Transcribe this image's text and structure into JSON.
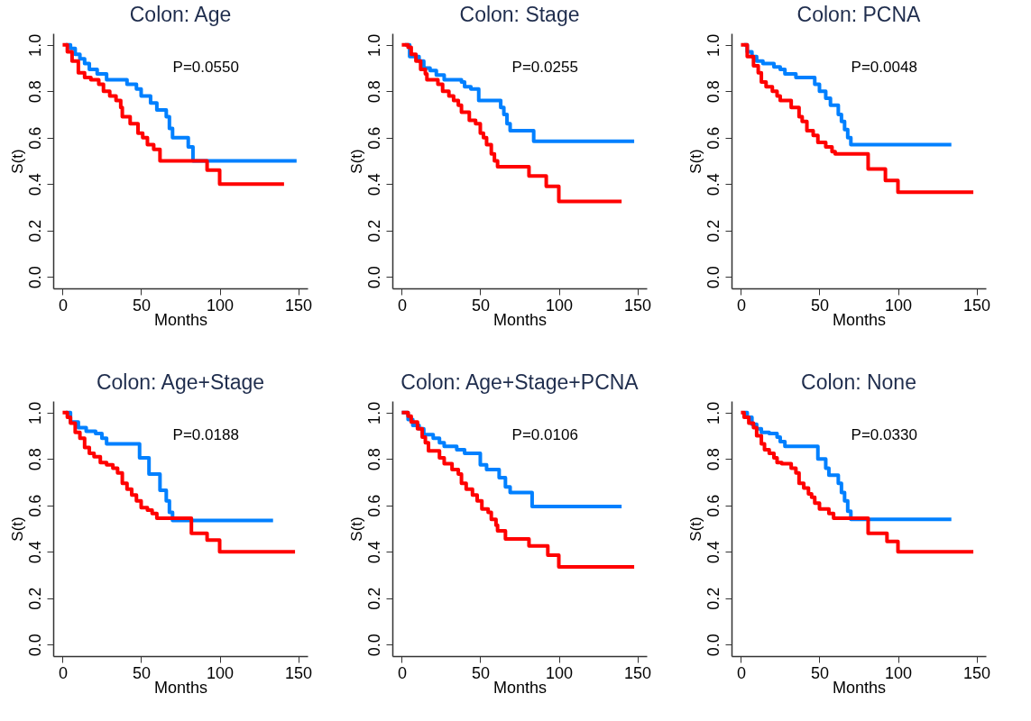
{
  "chart_data": [
    {
      "type": "step",
      "title": "Colon: Age",
      "xlabel": "Months",
      "ylabel": "S(t)",
      "xlim": [
        -6,
        156
      ],
      "ylim": [
        -0.05,
        1.05
      ],
      "xticks": [
        0,
        50,
        100,
        150
      ],
      "yticks": [
        {
          "value": 0,
          "label": "0.0"
        },
        {
          "value": 0.2,
          "label": "0.2"
        },
        {
          "value": 0.4,
          "label": "0.4"
        },
        {
          "value": 0.6,
          "label": "0.6"
        },
        {
          "value": 0.8,
          "label": "0.8"
        },
        {
          "value": 1,
          "label": "1.0"
        }
      ],
      "annotations": [
        "P=0.0550"
      ],
      "series": [
        {
          "color": "#0080ff",
          "x": [
            2,
            5,
            8,
            11,
            14,
            17,
            22,
            28,
            41,
            47,
            50,
            56,
            60,
            66,
            68,
            70,
            80,
            83,
            149
          ],
          "values": [
            1.0,
            0.985,
            0.96,
            0.94,
            0.92,
            0.895,
            0.875,
            0.85,
            0.83,
            0.81,
            0.78,
            0.75,
            0.72,
            0.69,
            0.64,
            0.6,
            0.56,
            0.5,
            0.5
          ]
        },
        {
          "color": "#ff0000",
          "x": [
            0,
            3,
            6,
            10,
            14,
            18,
            23,
            26,
            30,
            34,
            37,
            38,
            43,
            48,
            51,
            54,
            58,
            62,
            92,
            100,
            141
          ],
          "values": [
            1.0,
            0.97,
            0.93,
            0.88,
            0.86,
            0.85,
            0.83,
            0.8,
            0.78,
            0.76,
            0.73,
            0.69,
            0.66,
            0.62,
            0.6,
            0.57,
            0.55,
            0.5,
            0.46,
            0.4,
            0.4
          ]
        }
      ]
    },
    {
      "type": "step",
      "title": "Colon: Stage",
      "xlabel": "Months",
      "ylabel": "S(t)",
      "xlim": [
        -6,
        156
      ],
      "ylim": [
        -0.05,
        1.05
      ],
      "xticks": [
        0,
        50,
        100,
        150
      ],
      "yticks": [
        {
          "value": 0,
          "label": "0.0"
        },
        {
          "value": 0.2,
          "label": "0.2"
        },
        {
          "value": 0.4,
          "label": "0.4"
        },
        {
          "value": 0.6,
          "label": "0.6"
        },
        {
          "value": 0.8,
          "label": "0.8"
        },
        {
          "value": 1,
          "label": "1.0"
        }
      ],
      "annotations": [
        "P=0.0255"
      ],
      "series": [
        {
          "color": "#0080ff",
          "x": [
            2,
            5,
            11,
            14,
            18,
            22,
            27,
            38,
            40,
            44,
            49,
            63,
            65,
            67,
            69,
            84,
            148
          ],
          "values": [
            1.0,
            0.95,
            0.93,
            0.9,
            0.89,
            0.87,
            0.85,
            0.84,
            0.82,
            0.81,
            0.76,
            0.73,
            0.7,
            0.66,
            0.63,
            0.585,
            0.585
          ]
        },
        {
          "color": "#ff0000",
          "x": [
            0,
            4,
            6,
            9,
            12,
            15,
            16,
            23,
            26,
            30,
            33,
            36,
            38,
            43,
            47,
            50,
            52,
            54,
            57,
            59,
            61,
            81,
            92,
            100,
            140
          ],
          "values": [
            1.0,
            0.99,
            0.96,
            0.93,
            0.895,
            0.875,
            0.85,
            0.83,
            0.8,
            0.78,
            0.76,
            0.74,
            0.71,
            0.675,
            0.66,
            0.62,
            0.6,
            0.57,
            0.53,
            0.5,
            0.475,
            0.435,
            0.39,
            0.325,
            0.325
          ]
        }
      ]
    },
    {
      "type": "step",
      "title": "Colon: PCNA",
      "xlabel": "Months",
      "ylabel": "S(t)",
      "xlim": [
        -6,
        156
      ],
      "ylim": [
        -0.05,
        1.05
      ],
      "xticks": [
        0,
        50,
        100,
        150
      ],
      "yticks": [
        {
          "value": 0,
          "label": "0.0"
        },
        {
          "value": 0.2,
          "label": "0.2"
        },
        {
          "value": 0.4,
          "label": "0.4"
        },
        {
          "value": 0.6,
          "label": "0.6"
        },
        {
          "value": 0.8,
          "label": "0.8"
        },
        {
          "value": 1,
          "label": "1.0"
        }
      ],
      "annotations": [
        "P=0.0048"
      ],
      "series": [
        {
          "color": "#0080ff",
          "x": [
            2,
            4,
            7,
            10,
            14,
            21,
            25,
            28,
            35,
            47,
            50,
            54,
            57,
            62,
            64,
            66,
            68,
            70,
            134
          ],
          "values": [
            1.0,
            0.97,
            0.95,
            0.93,
            0.92,
            0.905,
            0.895,
            0.875,
            0.86,
            0.83,
            0.8,
            0.77,
            0.74,
            0.7,
            0.67,
            0.635,
            0.6,
            0.57,
            0.57
          ]
        },
        {
          "color": "#ff0000",
          "x": [
            0,
            4,
            8,
            11,
            13,
            16,
            20,
            23,
            25,
            32,
            37,
            39,
            42,
            46,
            49,
            54,
            58,
            60,
            81,
            92,
            100,
            148
          ],
          "values": [
            1.0,
            0.95,
            0.91,
            0.88,
            0.84,
            0.82,
            0.8,
            0.78,
            0.76,
            0.73,
            0.69,
            0.67,
            0.63,
            0.61,
            0.58,
            0.56,
            0.54,
            0.53,
            0.465,
            0.415,
            0.365,
            0.365
          ]
        }
      ]
    },
    {
      "type": "step",
      "title": "Colon: Age+Stage",
      "xlabel": "Months",
      "ylabel": "S(t)",
      "xlim": [
        -6,
        156
      ],
      "ylim": [
        -0.05,
        1.05
      ],
      "xticks": [
        0,
        50,
        100,
        150
      ],
      "yticks": [
        {
          "value": 0,
          "label": "0.0"
        },
        {
          "value": 0.2,
          "label": "0.2"
        },
        {
          "value": 0.4,
          "label": "0.4"
        },
        {
          "value": 0.6,
          "label": "0.6"
        },
        {
          "value": 0.8,
          "label": "0.8"
        },
        {
          "value": 1,
          "label": "1.0"
        }
      ],
      "annotations": [
        "P=0.0188"
      ],
      "series": [
        {
          "color": "#0080ff",
          "x": [
            2,
            5,
            10,
            15,
            21,
            25,
            28,
            49,
            55,
            62,
            66,
            68,
            70,
            134
          ],
          "values": [
            1.0,
            0.96,
            0.935,
            0.92,
            0.91,
            0.89,
            0.865,
            0.805,
            0.735,
            0.665,
            0.62,
            0.57,
            0.535,
            0.535
          ]
        },
        {
          "color": "#ff0000",
          "x": [
            0,
            3,
            5,
            8,
            11,
            14,
            17,
            20,
            24,
            28,
            32,
            35,
            38,
            41,
            44,
            47,
            50,
            54,
            57,
            60,
            82,
            92,
            100,
            148
          ],
          "values": [
            1.0,
            0.98,
            0.955,
            0.915,
            0.89,
            0.85,
            0.825,
            0.81,
            0.785,
            0.775,
            0.76,
            0.74,
            0.695,
            0.67,
            0.645,
            0.62,
            0.59,
            0.58,
            0.565,
            0.545,
            0.48,
            0.45,
            0.4,
            0.4
          ]
        }
      ]
    },
    {
      "type": "step",
      "title": "Colon: Age+Stage+PCNA",
      "xlabel": "Months",
      "ylabel": "S(t)",
      "xlim": [
        -6,
        156
      ],
      "ylim": [
        -0.05,
        1.05
      ],
      "xticks": [
        0,
        50,
        100,
        150
      ],
      "yticks": [
        {
          "value": 0,
          "label": "0.0"
        },
        {
          "value": 0.2,
          "label": "0.2"
        },
        {
          "value": 0.4,
          "label": "0.4"
        },
        {
          "value": 0.6,
          "label": "0.6"
        },
        {
          "value": 0.8,
          "label": "0.8"
        },
        {
          "value": 1,
          "label": "1.0"
        }
      ],
      "annotations": [
        "P=0.0106"
      ],
      "series": [
        {
          "color": "#0080ff",
          "x": [
            0,
            4,
            7,
            11,
            14,
            20,
            24,
            27,
            35,
            40,
            50,
            54,
            62,
            66,
            69,
            83,
            140
          ],
          "values": [
            1.0,
            0.97,
            0.945,
            0.93,
            0.905,
            0.89,
            0.87,
            0.855,
            0.84,
            0.825,
            0.775,
            0.755,
            0.72,
            0.68,
            0.655,
            0.595,
            0.595
          ]
        },
        {
          "color": "#ff0000",
          "x": [
            0,
            4,
            6,
            10,
            13,
            15,
            17,
            24,
            27,
            32,
            36,
            38,
            41,
            45,
            48,
            51,
            55,
            57,
            60,
            61,
            66,
            81,
            93,
            100,
            148
          ],
          "values": [
            1.0,
            0.985,
            0.96,
            0.93,
            0.895,
            0.87,
            0.835,
            0.805,
            0.78,
            0.755,
            0.735,
            0.695,
            0.67,
            0.645,
            0.62,
            0.585,
            0.57,
            0.54,
            0.515,
            0.49,
            0.455,
            0.425,
            0.385,
            0.335,
            0.335
          ]
        }
      ]
    },
    {
      "type": "step",
      "title": "Colon: None",
      "xlabel": "Months",
      "ylabel": "S(t)",
      "xlim": [
        -6,
        156
      ],
      "ylim": [
        -0.05,
        1.05
      ],
      "xticks": [
        0,
        50,
        100,
        150
      ],
      "yticks": [
        {
          "value": 0,
          "label": "0.0"
        },
        {
          "value": 0.2,
          "label": "0.2"
        },
        {
          "value": 0.4,
          "label": "0.4"
        },
        {
          "value": 0.6,
          "label": "0.6"
        },
        {
          "value": 0.8,
          "label": "0.8"
        },
        {
          "value": 1,
          "label": "1.0"
        }
      ],
      "annotations": [
        "P=0.0330"
      ],
      "series": [
        {
          "color": "#0080ff",
          "x": [
            2,
            4,
            7,
            10,
            13,
            18,
            23,
            25,
            28,
            49,
            54,
            56,
            62,
            64,
            66,
            68,
            70,
            134
          ],
          "values": [
            1.0,
            0.98,
            0.95,
            0.93,
            0.915,
            0.91,
            0.895,
            0.875,
            0.855,
            0.8,
            0.76,
            0.73,
            0.695,
            0.655,
            0.62,
            0.575,
            0.54,
            0.54
          ]
        },
        {
          "color": "#ff0000",
          "x": [
            0,
            2,
            5,
            8,
            10,
            13,
            15,
            18,
            21,
            23,
            26,
            32,
            35,
            37,
            40,
            43,
            45,
            47,
            50,
            56,
            59,
            81,
            93,
            100,
            148
          ],
          "values": [
            1.0,
            0.98,
            0.955,
            0.935,
            0.9,
            0.865,
            0.84,
            0.825,
            0.805,
            0.785,
            0.78,
            0.76,
            0.74,
            0.695,
            0.675,
            0.65,
            0.635,
            0.61,
            0.585,
            0.565,
            0.545,
            0.48,
            0.445,
            0.4,
            0.4
          ]
        }
      ]
    }
  ]
}
